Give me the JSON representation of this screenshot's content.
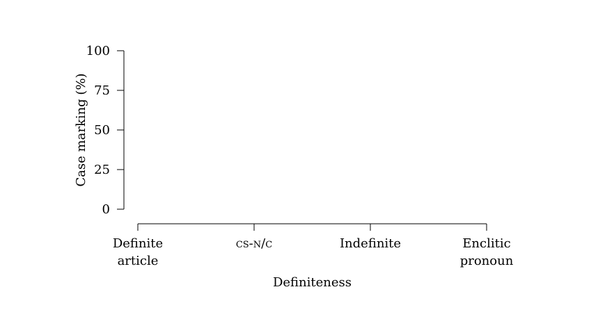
{
  "chart_data": {
    "type": "bar",
    "title": "",
    "xlabel": "Definiteness",
    "ylabel": "Case marking (%)",
    "ylim": [
      0,
      100
    ],
    "yticks": [
      0,
      25,
      50,
      75,
      100
    ],
    "categories": [
      {
        "lines": [
          "Definite",
          "article"
        ],
        "smallcaps": false
      },
      {
        "lines": [
          "cs-n/c"
        ],
        "smallcaps": true
      },
      {
        "lines": [
          "Indefinite"
        ],
        "smallcaps": false
      },
      {
        "lines": [
          "Enclitic",
          "pronoun"
        ],
        "smallcaps": false
      }
    ],
    "series": [],
    "grid": false,
    "legend": "none"
  }
}
